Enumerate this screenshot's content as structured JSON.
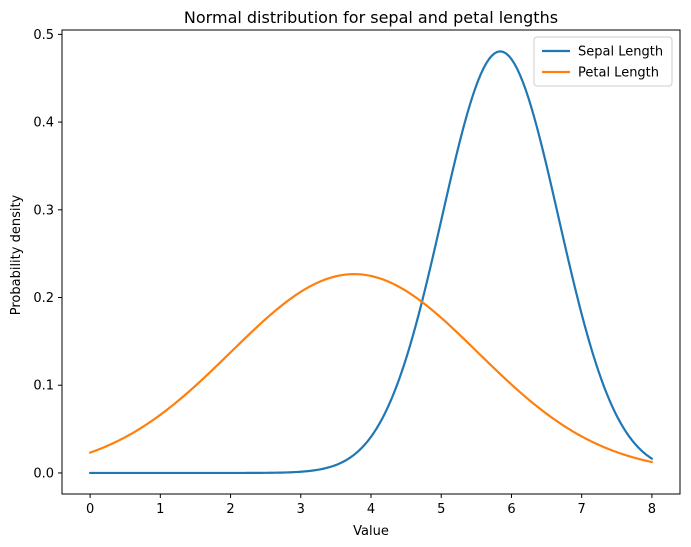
{
  "chart_data": {
    "type": "line",
    "title": "Normal distribution for sepal and petal lengths",
    "xlabel": "Value",
    "ylabel": "Probability density",
    "xlim": [
      -0.4,
      8.4
    ],
    "ylim": [
      -0.024,
      0.505
    ],
    "xticks": [
      0,
      1,
      2,
      3,
      4,
      5,
      6,
      7,
      8
    ],
    "yticks": [
      0.0,
      0.1,
      0.2,
      0.3,
      0.4,
      0.5
    ],
    "ytick_labels": [
      "0.0",
      "0.1",
      "0.2",
      "0.3",
      "0.4",
      "0.5"
    ],
    "grid": false,
    "legend_position": "top-right",
    "x_range": [
      0,
      8
    ],
    "series": [
      {
        "name": "Sepal Length",
        "color": "#1f77b4",
        "distribution": "normal",
        "mean": 5.84,
        "std": 0.83
      },
      {
        "name": "Petal Length",
        "color": "#ff7f0e",
        "distribution": "normal",
        "mean": 3.76,
        "std": 1.76
      }
    ]
  }
}
